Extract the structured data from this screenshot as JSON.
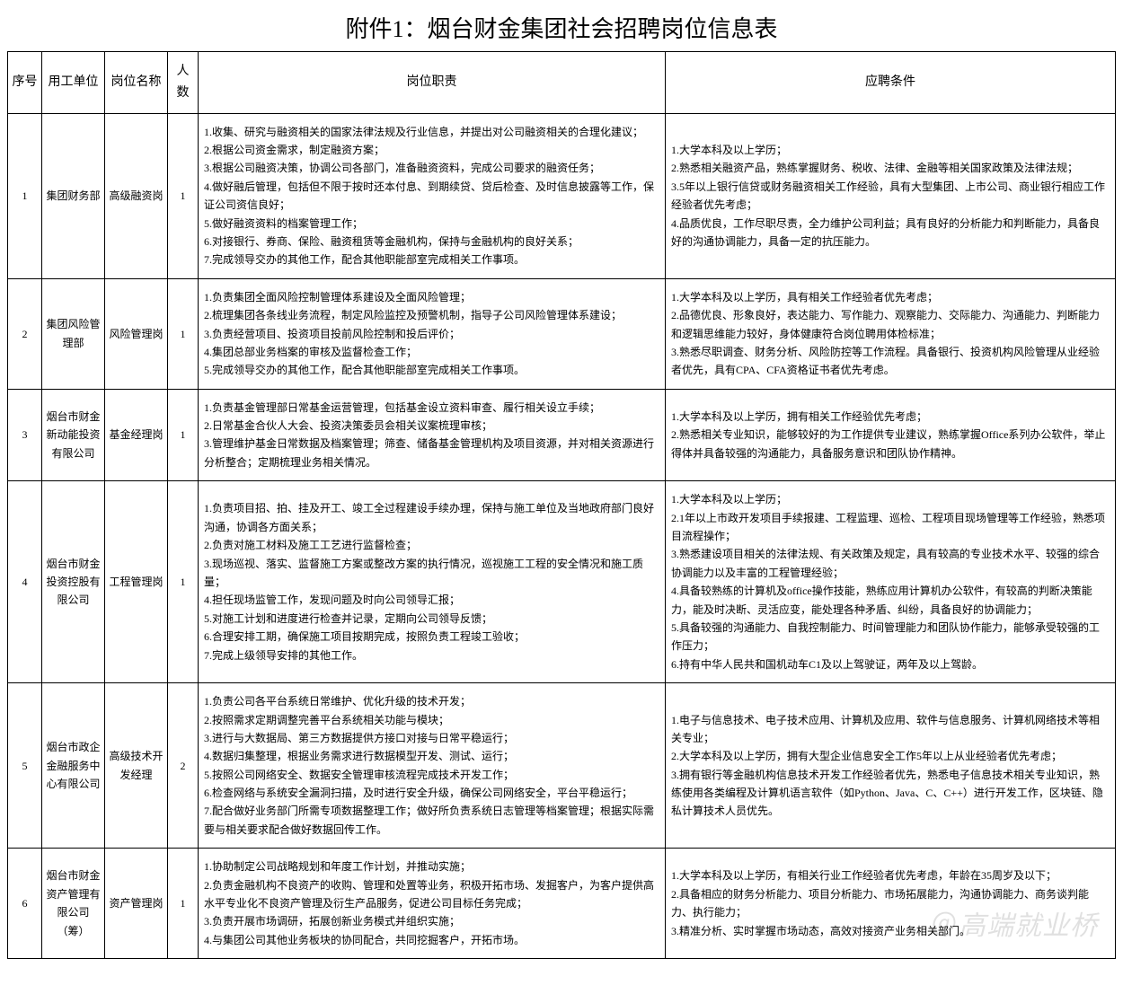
{
  "doc_title": "附件1：烟台财金集团社会招聘岗位信息表",
  "headers": {
    "seq": "序号",
    "unit": "用工单位",
    "job": "岗位名称",
    "num": "人数",
    "duty": "岗位职责",
    "req": "应聘条件"
  },
  "rows": [
    {
      "seq": "1",
      "unit": "集团财务部",
      "job": "高级融资岗",
      "num": "1",
      "duty": "1.收集、研究与融资相关的国家法律法规及行业信息，并提出对公司融资相关的合理化建议；\n2.根据公司资金需求，制定融资方案；\n3.根据公司融资决策，协调公司各部门，准备融资资料，完成公司要求的融资任务；\n4.做好融后管理，包括但不限于按时还本付息、到期续贷、贷后检查、及时信息披露等工作，保证公司资信良好；\n5.做好融资资料的档案管理工作；\n6.对接银行、券商、保险、融资租赁等金融机构，保持与金融机构的良好关系；\n7.完成领导交办的其他工作，配合其他职能部室完成相关工作事项。",
      "req": "1.大学本科及以上学历；\n2.熟悉相关融资产品，熟练掌握财务、税收、法律、金融等相关国家政策及法律法规；\n3.5年以上银行信贷或财务融资相关工作经验，具有大型集团、上市公司、商业银行相应工作经验者优先考虑；\n4.品质优良，工作尽职尽责，全力维护公司利益；具有良好的分析能力和判断能力，具备良好的沟通协调能力，具备一定的抗压能力。"
    },
    {
      "seq": "2",
      "unit": "集团风险管理部",
      "job": "风险管理岗",
      "num": "1",
      "duty": "1.负责集团全面风险控制管理体系建设及全面风险管理；\n2.梳理集团各条线业务流程，制定风险监控及预警机制，指导子公司风险管理体系建设；\n3.负责经营项目、投资项目投前风险控制和投后评价；\n4.集团总部业务档案的审核及监督检查工作；\n5.完成领导交办的其他工作，配合其他职能部室完成相关工作事项。",
      "req": "1.大学本科及以上学历，具有相关工作经验者优先考虑；\n2.品德优良、形象良好，表达能力、写作能力、观察能力、交际能力、沟通能力、判断能力和逻辑思维能力较好，身体健康符合岗位聘用体检标准；\n3.熟悉尽职调查、财务分析、风险防控等工作流程。具备银行、投资机构风险管理从业经验者优先，具有CPA、CFA资格证书者优先考虑。"
    },
    {
      "seq": "3",
      "unit": "烟台市财金新动能投资有限公司",
      "job": "基金经理岗",
      "num": "1",
      "duty": "1.负责基金管理部日常基金运营管理，包括基金设立资料审查、履行相关设立手续；\n2.日常基金合伙人大会、投资决策委员会相关议案梳理审核；\n3.管理维护基金日常数据及档案管理；筛查、储备基金管理机构及项目资源，并对相关资源进行分析整合；定期梳理业务相关情况。",
      "req": "1.大学本科及以上学历，拥有相关工作经验优先考虑；\n2.熟悉相关专业知识，能够较好的为工作提供专业建议，熟练掌握Office系列办公软件，举止得体并具备较强的沟通能力，具备服务意识和团队协作精神。"
    },
    {
      "seq": "4",
      "unit": "烟台市财金投资控股有限公司",
      "job": "工程管理岗",
      "num": "1",
      "duty": "1.负责项目招、拍、挂及开工、竣工全过程建设手续办理，保持与施工单位及当地政府部门良好沟通，协调各方面关系；\n2.负责对施工材料及施工工艺进行监督检查；\n3.现场巡视、落实、监督施工方案或整改方案的执行情况，巡视施工工程的安全情况和施工质量；\n4.担任现场监管工作，发现问题及时向公司领导汇报；\n5.对施工计划和进度进行检查并记录，定期向公司领导反馈；\n6.合理安排工期，确保施工项目按期完成，按照负责工程竣工验收；\n7.完成上级领导安排的其他工作。",
      "req": "1.大学本科及以上学历；\n2.1年以上市政开发项目手续报建、工程监理、巡检、工程项目现场管理等工作经验，熟悉项目流程操作；\n3.熟悉建设项目相关的法律法规、有关政策及规定，具有较高的专业技术水平、较强的综合协调能力以及丰富的工程管理经验；\n4.具备较熟练的计算机及office操作技能，熟练应用计算机办公软件，有较高的判断决策能力，能及时决断、灵活应变，能处理各种矛盾、纠纷，具备良好的协调能力；\n5.具备较强的沟通能力、自我控制能力、时间管理能力和团队协作能力，能够承受较强的工作压力；\n6.持有中华人民共和国机动车C1及以上驾驶证，两年及以上驾龄。"
    },
    {
      "seq": "5",
      "unit": "烟台市政企金融服务中心有限公司",
      "job": "高级技术开发经理",
      "num": "2",
      "duty": "1.负责公司各平台系统日常维护、优化升级的技术开发；\n2.按照需求定期调整完善平台系统相关功能与模块；\n3.进行与大数据局、第三方数据提供方接口对接与日常平稳运行；\n4.数据归集整理，根据业务需求进行数据模型开发、测试、运行；\n5.按照公司网络安全、数据安全管理审核流程完成技术开发工作；\n6.检查网络与系统安全漏洞扫描，及时进行安全升级，确保公司网络安全，平台平稳运行；\n7.配合做好业务部门所需专项数据整理工作；做好所负责系统日志管理等档案管理；根据实际需要与相关要求配合做好数据回传工作。",
      "req": "1.电子与信息技术、电子技术应用、计算机及应用、软件与信息服务、计算机网络技术等相关专业；\n2.大学本科及以上学历，拥有大型企业信息安全工作5年以上从业经验者优先考虑；\n3.拥有银行等金融机构信息技术开发工作经验者优先，熟悉电子信息技术相关专业知识，熟练使用各类编程及计算机语言软件（如Python、Java、C、C++）进行开发工作，区块链、隐私计算技术人员优先。"
    },
    {
      "seq": "6",
      "unit": "烟台市财金资产管理有限公司（筹）",
      "job": "资产管理岗",
      "num": "1",
      "duty": "1.协助制定公司战略规划和年度工作计划，并推动实施；\n2.负责金融机构不良资产的收购、管理和处置等业务，积极开拓市场、发掘客户，为客户提供高水平专业化不良资产管理及衍生产品服务，促进公司目标任务完成；\n3.负责开展市场调研，拓展创新业务模式并组织实施；\n4.与集团公司其他业务板块的协同配合，共同挖掘客户，开拓市场。",
      "req": "1.大学本科及以上学历，有相关行业工作经验者优先考虑，年龄在35周岁及以下；\n2.具备相应的财务分析能力、项目分析能力、市场拓展能力，沟通协调能力、商务谈判能力、执行能力；\n3.精准分析、实时掌握市场动态，高效对接资产业务相关部门。"
    }
  ],
  "watermark": "@高端就业桥"
}
